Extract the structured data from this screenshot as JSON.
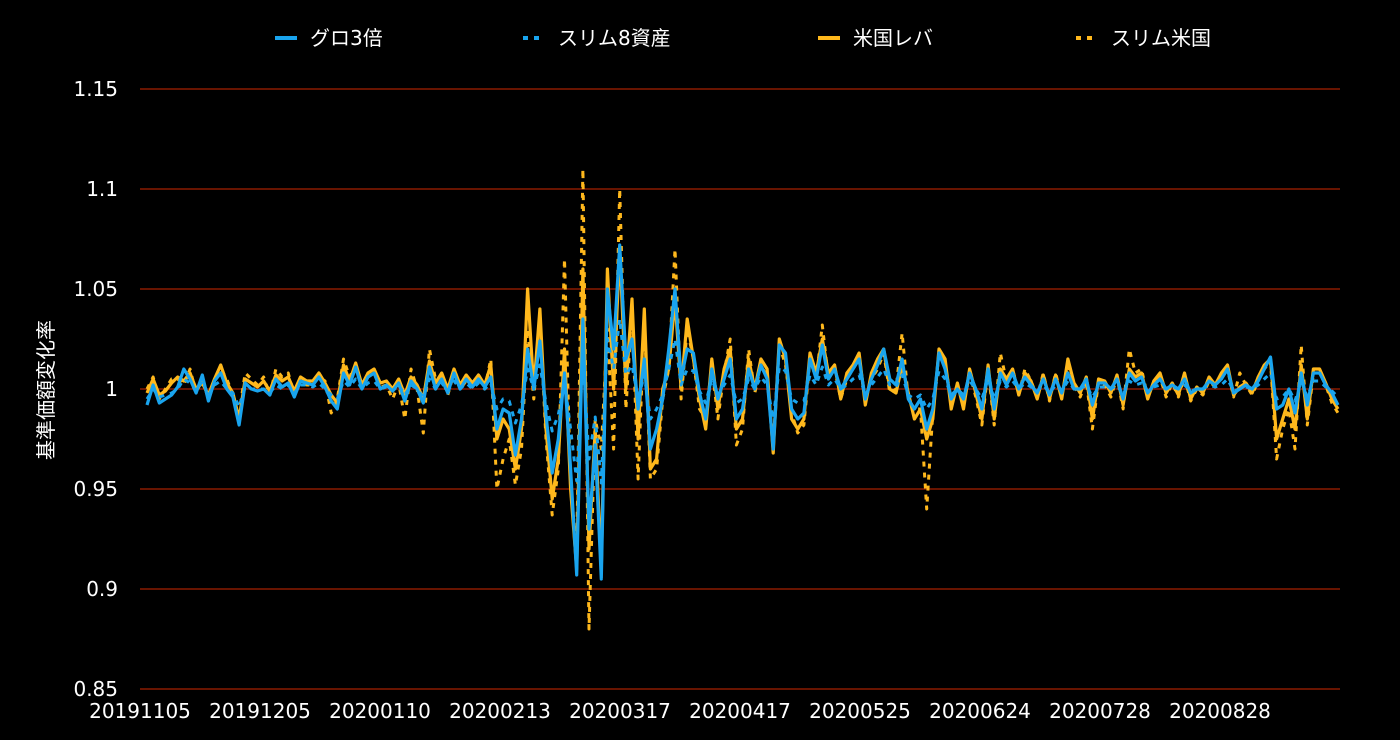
{
  "chart_data": {
    "type": "line",
    "title": "",
    "xlabel": "",
    "ylabel": "基準価額変化率",
    "ylim": [
      0.85,
      1.15
    ],
    "yticks": [
      "0.85",
      "0.9",
      "0.95",
      "1",
      "1.05",
      "1.1",
      "1.15"
    ],
    "xticks": [
      "20191105",
      "20191205",
      "20200110",
      "20200213",
      "20200317",
      "20200417",
      "20200525",
      "20200624",
      "20200728",
      "20200828"
    ],
    "grid": true,
    "legend_position": "top",
    "colors": {
      "background": "#000000",
      "grid": "#8b1a00",
      "blue": "#19a4ee",
      "gold": "#ffb81c"
    },
    "series": [
      {
        "name": "グロ3倍",
        "color": "#19a4ee",
        "dash": "solid",
        "values": [
          0.992,
          1.002,
          0.993,
          0.995,
          0.997,
          1.001,
          1.01,
          1.005,
          0.998,
          1.007,
          0.994,
          1.004,
          1.008,
          1.0,
          0.996,
          0.982,
          1.003,
          1.0,
          0.999,
          1.0,
          0.997,
          1.005,
          1.001,
          1.003,
          0.996,
          1.004,
          1.003,
          1.002,
          1.006,
          1.001,
          0.994,
          0.99,
          1.008,
          1.002,
          1.011,
          1.0,
          1.006,
          1.008,
          1.0,
          1.002,
          0.999,
          1.003,
          0.994,
          1.004,
          1.0,
          0.993,
          1.011,
          1.0,
          1.005,
          0.998,
          1.008,
          1.0,
          1.005,
          1.001,
          1.005,
          1.001,
          1.006,
          0.98,
          0.99,
          0.988,
          0.967,
          0.985,
          1.02,
          1.0,
          1.024,
          0.987,
          0.958,
          0.975,
          1.008,
          0.96,
          0.907,
          1.035,
          0.93,
          0.972,
          0.905,
          1.05,
          1.02,
          1.072,
          1.015,
          1.025,
          0.99,
          1.015,
          0.97,
          0.98,
          0.995,
          1.02,
          1.05,
          1.005,
          1.02,
          1.018,
          0.998,
          0.985,
          1.01,
          0.995,
          1.005,
          1.015,
          0.985,
          0.99,
          1.01,
          1.0,
          1.012,
          1.005,
          0.97,
          1.022,
          1.018,
          0.99,
          0.985,
          0.988,
          1.015,
          1.005,
          1.022,
          1.005,
          1.01,
          1.0,
          1.005,
          1.01,
          1.015,
          0.995,
          1.005,
          1.012,
          1.02,
          1.005,
          1.002,
          1.015,
          0.995,
          0.99,
          0.995,
          0.98,
          0.99,
          1.018,
          1.01,
          0.995,
          1.0,
          0.995,
          1.008,
          1.0,
          0.99,
          1.01,
          0.99,
          1.008,
          1.002,
          1.008,
          1.0,
          1.006,
          1.002,
          0.998,
          1.005,
          0.997,
          1.005,
          0.998,
          1.008,
          1.0,
          1.0,
          1.005,
          0.992,
          1.003,
          1.003,
          1.0,
          1.005,
          0.995,
          1.008,
          1.004,
          1.006,
          0.998,
          1.002,
          1.005,
          1.0,
          1.002,
          1.0,
          1.005,
          0.998,
          1.0,
          1.0,
          1.004,
          1.002,
          1.005,
          1.01,
          0.998,
          1.0,
          1.002,
          1.0,
          1.004,
          1.01,
          1.016,
          0.99,
          0.992,
          1.0,
          0.988,
          1.008,
          0.992,
          1.008,
          1.008,
          1.002,
          0.998,
          0.992
        ]
      },
      {
        "name": "スリム8資産",
        "color": "#19a4ee",
        "dash": "dashed",
        "values": [
          0.995,
          1.0,
          0.996,
          0.997,
          0.998,
          1.0,
          1.005,
          1.003,
          0.999,
          1.004,
          0.997,
          1.002,
          1.004,
          1.0,
          0.998,
          0.991,
          1.001,
          1.0,
          1.0,
          1.0,
          0.998,
          1.002,
          1.0,
          1.002,
          0.998,
          1.002,
          1.002,
          1.001,
          1.003,
          1.0,
          0.997,
          0.995,
          1.004,
          1.001,
          1.005,
          1.0,
          1.003,
          1.004,
          1.0,
          1.001,
          0.999,
          1.002,
          0.997,
          1.002,
          1.0,
          0.996,
          1.005,
          1.0,
          1.003,
          0.999,
          1.004,
          1.0,
          1.003,
          1.0,
          1.003,
          1.0,
          1.003,
          0.99,
          0.995,
          0.994,
          0.983,
          0.992,
          1.01,
          1.0,
          1.012,
          0.993,
          0.979,
          0.987,
          1.004,
          0.98,
          0.954,
          1.017,
          0.965,
          0.986,
          0.953,
          1.025,
          1.01,
          1.035,
          1.007,
          1.012,
          0.995,
          1.007,
          0.985,
          0.99,
          0.997,
          1.01,
          1.025,
          1.002,
          1.01,
          1.009,
          0.999,
          0.993,
          1.005,
          0.997,
          1.002,
          1.007,
          0.993,
          0.995,
          1.005,
          1.0,
          1.006,
          1.002,
          0.985,
          1.011,
          1.009,
          0.995,
          0.993,
          0.994,
          1.007,
          1.002,
          1.011,
          1.002,
          1.005,
          1.0,
          1.002,
          1.005,
          1.007,
          0.997,
          1.002,
          1.006,
          1.01,
          1.002,
          1.001,
          1.007,
          0.997,
          0.995,
          0.997,
          0.99,
          0.995,
          1.009,
          1.005,
          0.997,
          1.0,
          0.997,
          1.004,
          1.0,
          0.995,
          1.005,
          0.995,
          1.004,
          1.001,
          1.004,
          1.0,
          1.003,
          1.001,
          0.999,
          1.002,
          0.998,
          1.002,
          0.999,
          1.004,
          1.0,
          1.0,
          1.002,
          0.996,
          1.001,
          1.001,
          1.0,
          1.002,
          0.997,
          1.004,
          1.002,
          1.003,
          0.999,
          1.001,
          1.002,
          1.0,
          1.001,
          1.0,
          1.002,
          0.999,
          1.0,
          1.0,
          1.002,
          1.001,
          1.002,
          1.005,
          0.999,
          1.0,
          1.001,
          1.0,
          1.002,
          1.005,
          1.008,
          0.995,
          0.996,
          1.0,
          0.994,
          1.004,
          0.996,
          1.004,
          1.004,
          1.001,
          0.999,
          0.996
        ]
      },
      {
        "name": "米国レバ",
        "color": "#ffb81c",
        "dash": "solid",
        "values": [
          0.998,
          1.005,
          0.997,
          0.999,
          1.003,
          1.006,
          1.004,
          1.008,
          1.0,
          1.003,
          0.997,
          1.005,
          1.012,
          1.003,
          0.998,
          0.985,
          1.005,
          1.003,
          1.001,
          1.004,
          0.999,
          1.007,
          1.004,
          1.006,
          0.999,
          1.006,
          1.004,
          1.004,
          1.008,
          1.003,
          0.997,
          0.993,
          1.012,
          1.004,
          1.013,
          1.002,
          1.008,
          1.01,
          1.003,
          1.004,
          1.0,
          1.005,
          0.997,
          1.006,
          1.002,
          0.995,
          1.014,
          1.003,
          1.008,
          1.0,
          1.01,
          1.002,
          1.007,
          1.003,
          1.007,
          1.002,
          1.012,
          0.975,
          0.985,
          0.98,
          0.96,
          0.98,
          1.05,
          1.0,
          1.04,
          0.98,
          0.945,
          0.965,
          1.02,
          0.95,
          0.91,
          1.06,
          0.92,
          0.98,
          0.91,
          1.06,
          1.0,
          1.07,
          1.0,
          1.045,
          0.975,
          1.04,
          0.96,
          0.965,
          1.0,
          1.01,
          1.045,
          1.0,
          1.035,
          1.015,
          0.995,
          0.98,
          1.015,
          0.99,
          1.01,
          1.02,
          0.98,
          0.985,
          1.015,
          1.0,
          1.015,
          1.01,
          0.968,
          1.025,
          1.015,
          0.985,
          0.98,
          0.985,
          1.018,
          1.008,
          1.025,
          1.008,
          1.012,
          0.995,
          1.008,
          1.012,
          1.018,
          0.992,
          1.008,
          1.015,
          1.02,
          1.0,
          0.998,
          1.012,
          0.998,
          0.985,
          0.99,
          0.975,
          0.985,
          1.02,
          1.015,
          0.99,
          1.003,
          0.99,
          1.01,
          0.998,
          0.985,
          1.012,
          0.985,
          1.01,
          1.005,
          1.01,
          0.997,
          1.008,
          1.004,
          0.995,
          1.007,
          0.995,
          1.007,
          0.995,
          1.015,
          1.003,
          0.998,
          1.006,
          0.985,
          1.005,
          1.004,
          0.998,
          1.007,
          0.992,
          1.01,
          1.006,
          1.008,
          0.995,
          1.004,
          1.008,
          0.998,
          1.003,
          0.997,
          1.008,
          0.995,
          1.001,
          0.998,
          1.006,
          1.002,
          1.008,
          1.012,
          0.997,
          1.001,
          1.003,
          0.998,
          1.006,
          1.012,
          1.015,
          0.975,
          0.985,
          0.995,
          0.98,
          1.012,
          0.985,
          1.01,
          1.01,
          1.003,
          0.995,
          0.99
        ]
      },
      {
        "name": "スリム米国",
        "color": "#ffb81c",
        "dash": "dashed",
        "values": [
          1.0,
          1.006,
          0.995,
          1.0,
          1.005,
          1.005,
          1.002,
          1.01,
          0.998,
          1.005,
          0.995,
          1.003,
          1.01,
          1.005,
          0.997,
          0.988,
          1.008,
          1.005,
          1.002,
          1.006,
          0.997,
          1.01,
          1.006,
          1.008,
          0.997,
          1.004,
          1.002,
          1.002,
          1.006,
          1.004,
          0.988,
          0.995,
          1.015,
          1.006,
          1.012,
          1.0,
          1.006,
          1.008,
          1.001,
          1.002,
          0.995,
          1.003,
          0.985,
          1.01,
          1.0,
          0.978,
          1.02,
          1.005,
          1.006,
          0.997,
          1.008,
          1.0,
          1.004,
          1.002,
          1.005,
          1.0,
          1.015,
          0.95,
          0.965,
          0.975,
          0.952,
          0.97,
          1.03,
          0.995,
          1.035,
          0.975,
          0.937,
          0.96,
          1.065,
          0.95,
          0.92,
          1.11,
          0.88,
          0.985,
          0.97,
          1.03,
          0.97,
          1.1,
          0.99,
          1.04,
          0.955,
          1.035,
          0.955,
          0.96,
          0.995,
          1.01,
          1.07,
          0.995,
          1.03,
          1.015,
          0.99,
          0.985,
          1.012,
          0.985,
          1.008,
          1.025,
          0.972,
          0.98,
          1.02,
          0.998,
          1.012,
          1.006,
          0.972,
          1.022,
          1.012,
          0.988,
          0.978,
          0.982,
          1.015,
          1.005,
          1.032,
          1.005,
          1.01,
          0.995,
          1.005,
          1.01,
          1.015,
          0.995,
          1.005,
          1.01,
          1.018,
          0.998,
          1.0,
          1.028,
          0.995,
          0.99,
          0.99,
          0.94,
          0.988,
          1.018,
          1.012,
          0.995,
          1.002,
          0.992,
          1.008,
          0.996,
          0.982,
          1.01,
          0.982,
          1.018,
          1.004,
          1.01,
          0.997,
          1.01,
          1.004,
          0.996,
          1.008,
          0.994,
          1.008,
          0.996,
          1.012,
          1.002,
          0.996,
          1.004,
          0.98,
          1.004,
          1.002,
          0.996,
          1.006,
          0.99,
          1.02,
          1.008,
          1.01,
          0.996,
          1.003,
          1.006,
          0.996,
          1.003,
          0.996,
          1.006,
          0.994,
          1.0,
          0.997,
          1.004,
          1.001,
          1.006,
          1.01,
          0.996,
          1.008,
          1.002,
          0.997,
          1.004,
          1.01,
          1.014,
          0.965,
          0.98,
          0.99,
          0.97,
          1.022,
          0.982,
          1.008,
          1.008,
          1.002,
          0.993,
          0.988
        ]
      }
    ]
  }
}
